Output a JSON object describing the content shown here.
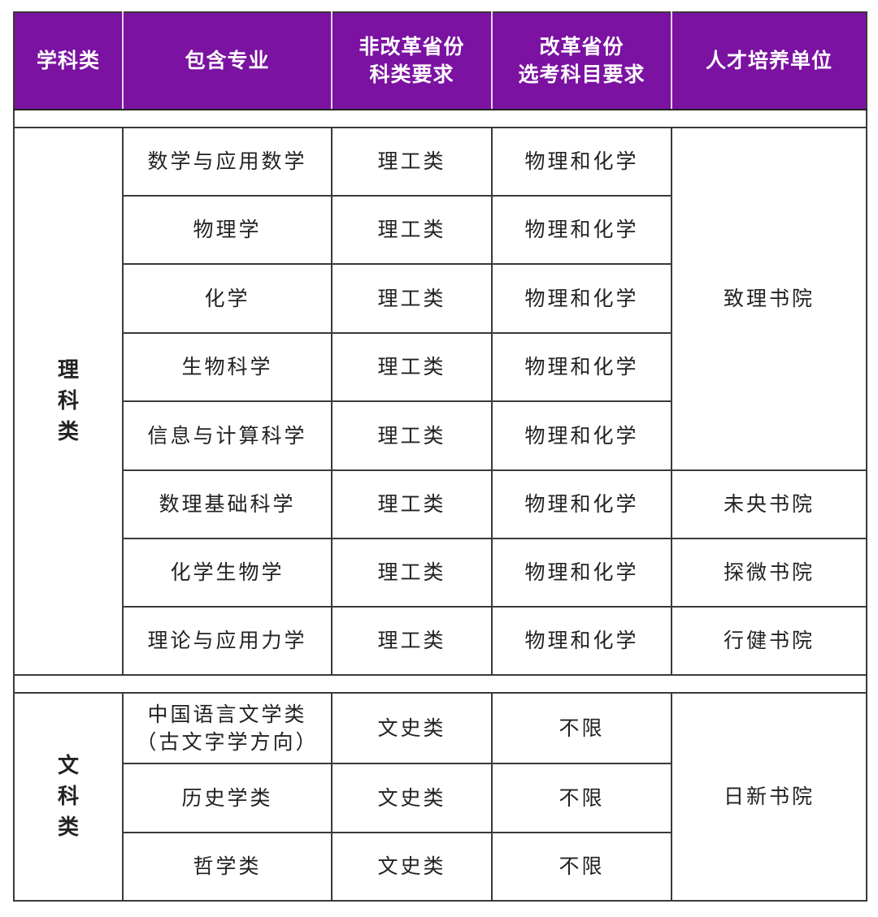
{
  "header": [
    "学科类",
    "包含专业",
    "非改革省份\n科类要求",
    "改革省份\n选考科目要求",
    "人才培养单位"
  ],
  "groups": [
    {
      "category": "理科类",
      "rows": [
        {
          "major": "数学与应用数学",
          "track": "理工类",
          "subjects": "物理和化学",
          "college": "致理书院",
          "college_span": 5
        },
        {
          "major": "物理学",
          "track": "理工类",
          "subjects": "物理和化学"
        },
        {
          "major": "化学",
          "track": "理工类",
          "subjects": "物理和化学"
        },
        {
          "major": "生物科学",
          "track": "理工类",
          "subjects": "物理和化学"
        },
        {
          "major": "信息与计算科学",
          "track": "理工类",
          "subjects": "物理和化学"
        },
        {
          "major": "数理基础科学",
          "track": "理工类",
          "subjects": "物理和化学",
          "college": "未央书院",
          "college_span": 1
        },
        {
          "major": "化学生物学",
          "track": "理工类",
          "subjects": "物理和化学",
          "college": "探微书院",
          "college_span": 1
        },
        {
          "major": "理论与应用力学",
          "track": "理工类",
          "subjects": "物理和化学",
          "college": "行健书院",
          "college_span": 1
        }
      ]
    },
    {
      "category": "文科类",
      "rows": [
        {
          "major": "中国语言文学类\n（古文字学方向）",
          "track": "文史类",
          "subjects": "不限",
          "college": "日新书院",
          "college_span": 3
        },
        {
          "major": "历史学类",
          "track": "文史类",
          "subjects": "不限"
        },
        {
          "major": "哲学类",
          "track": "文史类",
          "subjects": "不限"
        }
      ]
    }
  ],
  "colors": {
    "header_bg": "#7b12a1",
    "header_text": "#ffffff",
    "grid": "#3a3a3a"
  }
}
